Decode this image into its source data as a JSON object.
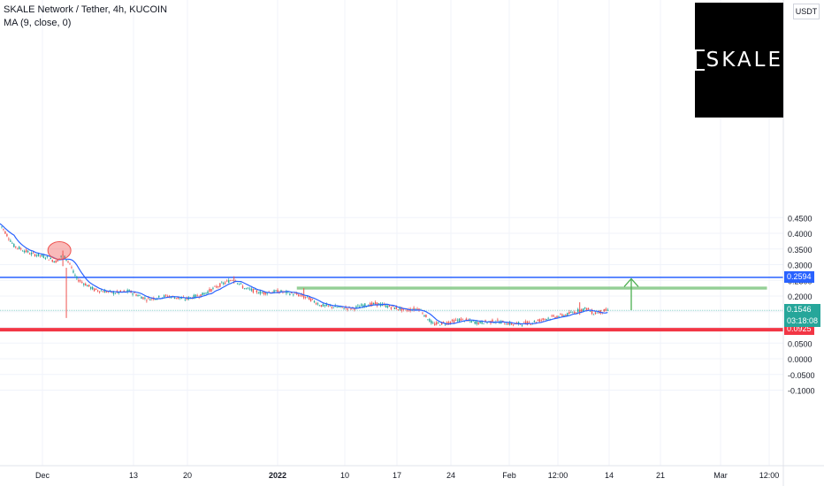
{
  "legend": {
    "title": "SKALE Network / Tether, 4h, KUCOIN",
    "indicator": "MA (9, close, 0)"
  },
  "logo": {
    "text": "SKALE"
  },
  "currency_label": "USDT",
  "colors": {
    "up": "#26a69a",
    "down": "#ef5350",
    "ma": "#2962ff",
    "resistance": "#2962ff",
    "support": "#f23645",
    "target_zone": "#81c784",
    "arrow": "#4caf50",
    "last_price": "#26a69a"
  },
  "chart_data": {
    "type": "candlestick",
    "symbol": "SKLUSDT",
    "interval": "4h",
    "exchange": "KUCOIN",
    "y_axis": {
      "ticks": [
        "0.4500",
        "0.4000",
        "0.3500",
        "0.3000",
        "0.2500",
        "0.2000",
        "0.1500",
        "0.1000",
        "0.0500",
        "0.0000",
        "-0.0500",
        "-0.1000"
      ],
      "range": [
        -0.13,
        0.455
      ]
    },
    "x_axis": {
      "ticks": [
        "Dec",
        "13",
        "20",
        "2022",
        "10",
        "17",
        "24",
        "Feb",
        "12:00",
        "14",
        "21",
        "Mar",
        "12:00"
      ]
    },
    "price_path": [
      {
        "t": 0,
        "p": 0.43
      },
      {
        "t": 4,
        "p": 0.36
      },
      {
        "t": 9,
        "p": 0.335
      },
      {
        "t": 13,
        "p": 0.325
      },
      {
        "t": 16,
        "p": 0.31
      },
      {
        "t": 18,
        "p": 0.33
      },
      {
        "t": 20,
        "p": 0.305
      },
      {
        "t": 21,
        "p": 0.275
      },
      {
        "t": 22,
        "p": 0.255
      },
      {
        "t": 27,
        "p": 0.22
      },
      {
        "t": 33,
        "p": 0.21
      },
      {
        "t": 37,
        "p": 0.215
      },
      {
        "t": 42,
        "p": 0.19
      },
      {
        "t": 48,
        "p": 0.2
      },
      {
        "t": 53,
        "p": 0.19
      },
      {
        "t": 58,
        "p": 0.205
      },
      {
        "t": 63,
        "p": 0.235
      },
      {
        "t": 67,
        "p": 0.255
      },
      {
        "t": 70,
        "p": 0.225
      },
      {
        "t": 75,
        "p": 0.21
      },
      {
        "t": 80,
        "p": 0.215
      },
      {
        "t": 85,
        "p": 0.205
      },
      {
        "t": 88,
        "p": 0.195
      },
      {
        "t": 92,
        "p": 0.17
      },
      {
        "t": 96,
        "p": 0.165
      },
      {
        "t": 101,
        "p": 0.16
      },
      {
        "t": 104,
        "p": 0.17
      },
      {
        "t": 108,
        "p": 0.175
      },
      {
        "t": 112,
        "p": 0.165
      },
      {
        "t": 116,
        "p": 0.155
      },
      {
        "t": 120,
        "p": 0.16
      },
      {
        "t": 122,
        "p": 0.135
      },
      {
        "t": 124,
        "p": 0.11
      },
      {
        "t": 128,
        "p": 0.115
      },
      {
        "t": 132,
        "p": 0.125
      },
      {
        "t": 137,
        "p": 0.115
      },
      {
        "t": 142,
        "p": 0.12
      },
      {
        "t": 147,
        "p": 0.11
      },
      {
        "t": 152,
        "p": 0.115
      },
      {
        "t": 157,
        "p": 0.13
      },
      {
        "t": 162,
        "p": 0.14
      },
      {
        "t": 166,
        "p": 0.155
      },
      {
        "t": 168,
        "p": 0.16
      },
      {
        "t": 170,
        "p": 0.145
      },
      {
        "t": 174,
        "p": 0.155
      }
    ],
    "wicks": [
      {
        "t": 18,
        "low": 0.295,
        "high": 0.345
      },
      {
        "t": 19,
        "low": 0.13,
        "high": 0.29
      },
      {
        "t": 67,
        "low": 0.24,
        "high": 0.263
      },
      {
        "t": 87,
        "low": 0.19,
        "high": 0.225
      },
      {
        "t": 166,
        "low": 0.14,
        "high": 0.18
      }
    ],
    "last_price": 0.1546,
    "countdown": "03:18:08",
    "levels": [
      {
        "name": "resistance",
        "value": 0.2594,
        "label": "0.2594"
      },
      {
        "name": "support",
        "value": 0.0925,
        "label": "0.0925"
      }
    ],
    "target_zone": {
      "low": 0.2205,
      "high": 0.23,
      "t_start": 85,
      "t_end": 220
    },
    "arrow": {
      "t": 179,
      "from": 0.155,
      "to": 0.255
    },
    "highlight_ellipse": {
      "t": 17,
      "price": 0.345
    }
  }
}
